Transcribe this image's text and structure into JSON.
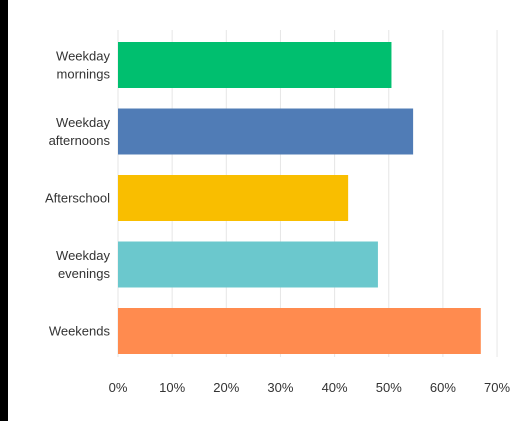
{
  "chart_data": {
    "type": "bar",
    "orientation": "horizontal",
    "categories": [
      [
        "Weekday",
        "mornings"
      ],
      [
        "Weekday",
        "afternoons"
      ],
      [
        "Afterschool"
      ],
      [
        "Weekday",
        "evenings"
      ],
      [
        "Weekends"
      ]
    ],
    "values": [
      50.5,
      54.5,
      42.5,
      48.0,
      67.0
    ],
    "colors": [
      "#00bf6f",
      "#507cb6",
      "#f9be00",
      "#6bc8cd",
      "#ff8b4f"
    ],
    "xlim": [
      0,
      70
    ],
    "xticks": [
      "0%",
      "10%",
      "20%",
      "30%",
      "40%",
      "50%",
      "60%",
      "70%"
    ],
    "grid": "vertical",
    "title": "",
    "xlabel": "",
    "ylabel": ""
  }
}
